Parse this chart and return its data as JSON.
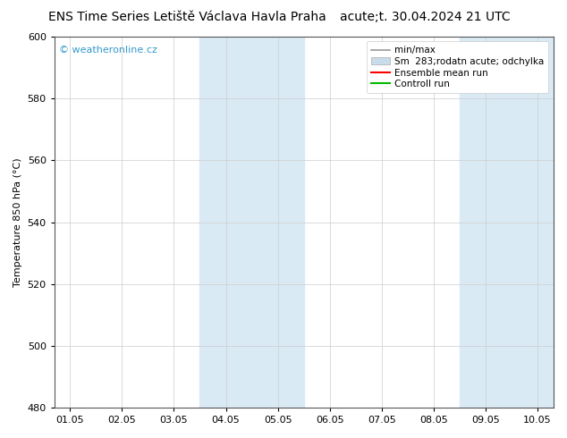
{
  "title_left": "ENS Time Series Letiště Václava Havla Praha",
  "title_right": "acute;t. 30.04.2024 21 UTC",
  "ylabel": "Temperature 850 hPa (°C)",
  "ylim": [
    480,
    600
  ],
  "yticks": [
    480,
    500,
    520,
    540,
    560,
    580,
    600
  ],
  "xtick_labels": [
    "01.05",
    "02.05",
    "03.05",
    "04.05",
    "05.05",
    "06.05",
    "07.05",
    "08.05",
    "09.05",
    "10.05"
  ],
  "shaded_bands": [
    {
      "xstart": 3,
      "xend": 5,
      "color": "#daeaf5"
    },
    {
      "xstart": 8,
      "xend": 10,
      "color": "#daeaf5"
    }
  ],
  "watermark": "© weatheronline.cz",
  "watermark_color": "#3399cc",
  "background_color": "#ffffff",
  "plot_bg_color": "#ffffff",
  "grid_color": "#cccccc",
  "title_fontsize": 10,
  "axis_fontsize": 8,
  "tick_fontsize": 8,
  "legend_fontsize": 7.5,
  "legend_label_minmax": "min/max",
  "legend_label_sm": "Sm  283;rodatn acute; odchylka",
  "legend_label_ens": "Ensemble mean run",
  "legend_label_ctrl": "Controll run",
  "legend_color_minmax": "#999999",
  "legend_color_sm": "#c8dcea",
  "legend_color_ens": "#ff0000",
  "legend_color_ctrl": "#00bb00"
}
